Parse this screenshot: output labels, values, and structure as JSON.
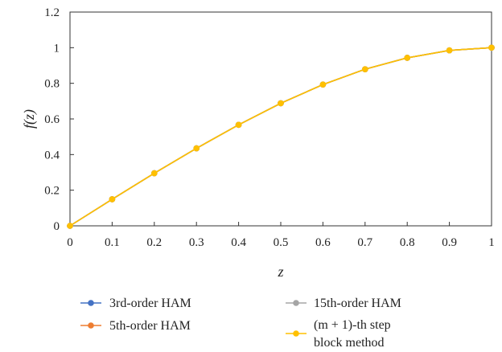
{
  "chart_data": {
    "type": "line",
    "xlabel": "z",
    "ylabel": "f(z)",
    "xlim": [
      0,
      1
    ],
    "ylim": [
      0,
      1.2
    ],
    "x_ticks": [
      "0",
      "0.1",
      "0.2",
      "0.3",
      "0.4",
      "0.5",
      "0.6",
      "0.7",
      "0.8",
      "0.9",
      "1"
    ],
    "y_ticks": [
      "0",
      "0.2",
      "0.4",
      "0.6",
      "0.8",
      "1",
      "1.2"
    ],
    "x": [
      0,
      0.1,
      0.2,
      0.3,
      0.4,
      0.5,
      0.6,
      0.7,
      0.8,
      0.9,
      1
    ],
    "series": [
      {
        "name": "3rd-order HAM",
        "color": "#4472c4",
        "values": [
          0,
          0.149,
          0.295,
          0.435,
          0.567,
          0.688,
          0.793,
          0.879,
          0.943,
          0.985,
          1.0
        ]
      },
      {
        "name": "5th-order HAM",
        "color": "#ed7d31",
        "values": [
          0,
          0.149,
          0.295,
          0.435,
          0.567,
          0.688,
          0.793,
          0.879,
          0.943,
          0.985,
          1.0
        ]
      },
      {
        "name": "15th-order HAM",
        "color": "#a5a5a5",
        "values": [
          0,
          0.149,
          0.295,
          0.435,
          0.567,
          0.688,
          0.793,
          0.879,
          0.943,
          0.985,
          1.0
        ]
      },
      {
        "name": "(m + 1)-th step block method",
        "color": "#ffc000",
        "values": [
          0,
          0.149,
          0.295,
          0.435,
          0.567,
          0.688,
          0.793,
          0.879,
          0.943,
          0.985,
          1.0
        ]
      }
    ],
    "grid": false,
    "legend_position": "bottom"
  },
  "legend": {
    "items": [
      {
        "lines": [
          "3rd-order HAM"
        ],
        "color": "#4472c4"
      },
      {
        "lines": [
          "5th-order HAM"
        ],
        "color": "#ed7d31"
      },
      {
        "lines": [
          "15th-order HAM"
        ],
        "color": "#a5a5a5"
      },
      {
        "lines": [
          "(m + 1)-th step",
          "block method"
        ],
        "color": "#ffc000"
      }
    ]
  }
}
